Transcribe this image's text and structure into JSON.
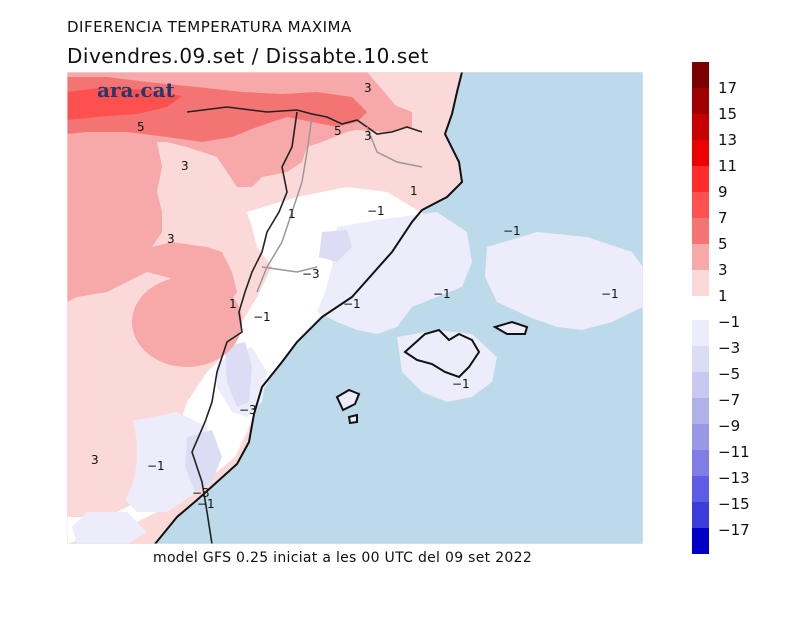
{
  "title": "DIFERENCIA TEMPERATURA MAXIMA",
  "subtitle": "Divendres.09.set / Dissabte.10.set",
  "footer": "model GFS 0.25 iniciat a les 00 UTC del 09 set 2022",
  "logo": "ara.cat",
  "contour_labels": [
    {
      "text": "3",
      "lon_pos": "north-center"
    },
    {
      "text": "5"
    },
    {
      "text": "5"
    },
    {
      "text": "3"
    },
    {
      "text": "3"
    },
    {
      "text": "3"
    },
    {
      "text": "1"
    },
    {
      "text": "1"
    },
    {
      "text": "1"
    },
    {
      "text": "−1"
    },
    {
      "text": "−1"
    },
    {
      "text": "−3"
    },
    {
      "text": "−1"
    },
    {
      "text": "−1"
    },
    {
      "text": "−1"
    },
    {
      "text": "−1"
    },
    {
      "text": "−1"
    },
    {
      "text": "−3"
    },
    {
      "text": "3"
    },
    {
      "text": "−1"
    },
    {
      "text": "−3"
    },
    {
      "text": "−1"
    }
  ],
  "legend": {
    "swatches": [
      {
        "color": "#7b0000"
      },
      {
        "color": "#a00000"
      },
      {
        "color": "#c80000"
      },
      {
        "color": "#ec0000"
      },
      {
        "color": "#ff2a2a"
      },
      {
        "color": "#ff5050"
      },
      {
        "color": "#f47474"
      },
      {
        "color": "#f7a8a8"
      },
      {
        "color": "#fbd9d9"
      },
      {
        "color": "#ececfa"
      },
      {
        "color": "#dcdcf4"
      },
      {
        "color": "#c8c8f0"
      },
      {
        "color": "#b0b0ea"
      },
      {
        "color": "#9898e6"
      },
      {
        "color": "#7e7ee6"
      },
      {
        "color": "#5c5ce6"
      },
      {
        "color": "#3c3cdc"
      },
      {
        "color": "#2020e6"
      },
      {
        "color": "#0000c8"
      }
    ],
    "labels": [
      "17",
      "15",
      "13",
      "11",
      "9",
      "7",
      "5",
      "3",
      "1",
      "−1",
      "−3",
      "−5",
      "−7",
      "−9",
      "−11",
      "−13",
      "−15",
      "−17"
    ]
  },
  "colors": {
    "sea": "#bcdaea",
    "land_warm_1_3": "#fbd9d9",
    "land_warm_3_5": "#f7a8a8",
    "land_warm_5_7": "#f47474",
    "land_warm_7_9": "#ff5050",
    "cool_neg1": "#ececfa",
    "cool_neg3": "#dcdcf4"
  }
}
